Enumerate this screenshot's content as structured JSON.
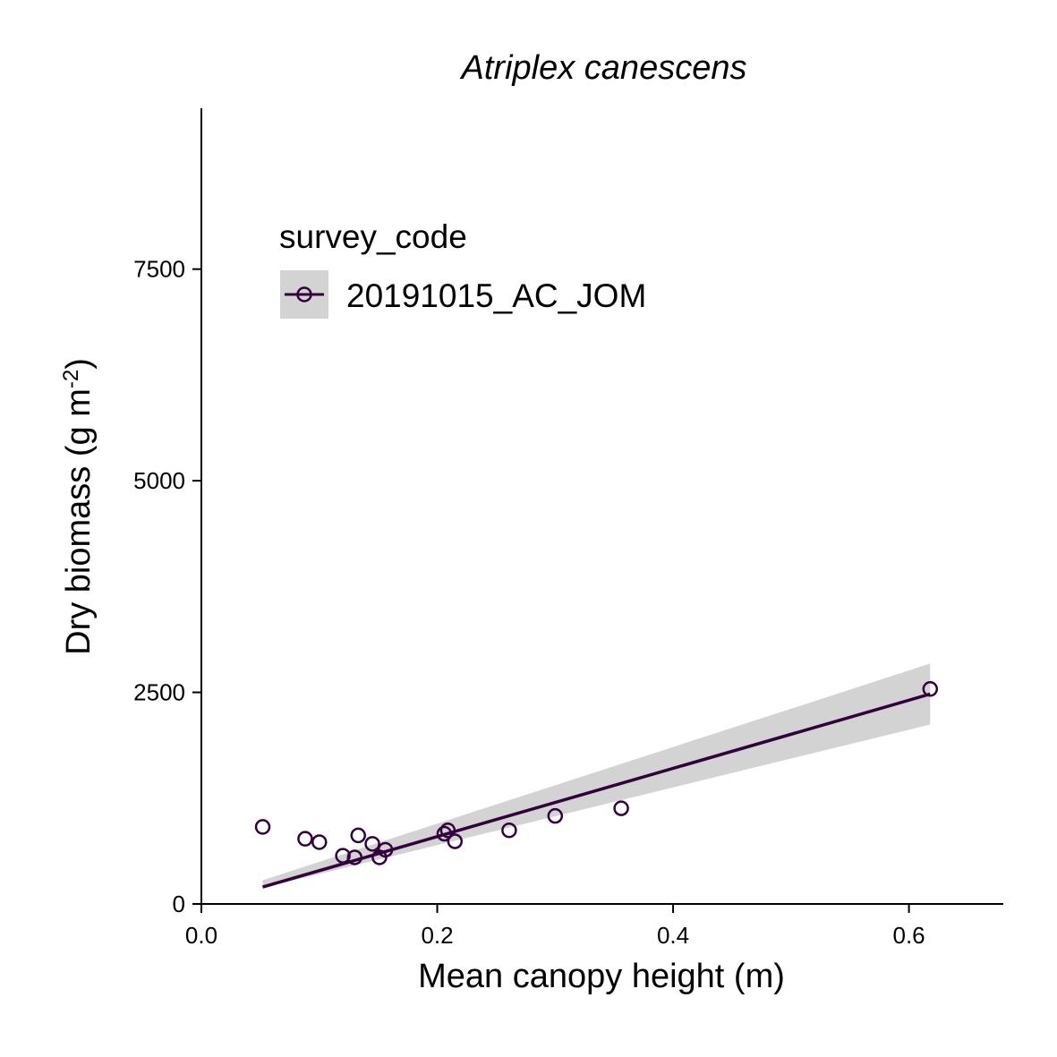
{
  "chart_data": {
    "type": "scatter",
    "title": "Atriplex canescens",
    "xlabel": "Mean canopy height (m)",
    "ylabel": {
      "main": "Dry biomass (g m",
      "superscript": "-2",
      "close": ")"
    },
    "xlim": [
      0.0,
      0.68
    ],
    "ylim": [
      0,
      9400
    ],
    "x_ticks": [
      0.0,
      0.2,
      0.4,
      0.6
    ],
    "x_tick_labels": [
      "0.0",
      "0.2",
      "0.4",
      "0.6"
    ],
    "y_ticks": [
      0,
      2500,
      5000,
      7500
    ],
    "y_tick_labels": [
      "0",
      "2500",
      "5000",
      "7500"
    ],
    "grid": false,
    "legend": {
      "title": "survey_code",
      "position": "top-left",
      "entries": [
        "20191015_AC_JOM"
      ]
    },
    "series": [
      {
        "name": "20191015_AC_JOM",
        "color": "#33003d",
        "points": [
          {
            "x": 0.052,
            "y": 910
          },
          {
            "x": 0.088,
            "y": 770
          },
          {
            "x": 0.1,
            "y": 730
          },
          {
            "x": 0.12,
            "y": 570
          },
          {
            "x": 0.13,
            "y": 550
          },
          {
            "x": 0.133,
            "y": 810
          },
          {
            "x": 0.145,
            "y": 710
          },
          {
            "x": 0.151,
            "y": 550
          },
          {
            "x": 0.156,
            "y": 640
          },
          {
            "x": 0.206,
            "y": 830
          },
          {
            "x": 0.209,
            "y": 870
          },
          {
            "x": 0.215,
            "y": 740
          },
          {
            "x": 0.261,
            "y": 870
          },
          {
            "x": 0.3,
            "y": 1040
          },
          {
            "x": 0.356,
            "y": 1130
          },
          {
            "x": 0.618,
            "y": 2540
          }
        ],
        "fit": {
          "method": "linear",
          "x": [
            0.052,
            0.618
          ],
          "y": [
            200,
            2480
          ],
          "ci_lower": [
            190,
            2120
          ],
          "ci_upper": [
            280,
            2840
          ]
        }
      }
    ]
  },
  "colors": {
    "series": "#33003d",
    "ci_band": "#d3d3d3",
    "legend_key_bg": "#d3d3d3",
    "axis": "#000000"
  }
}
